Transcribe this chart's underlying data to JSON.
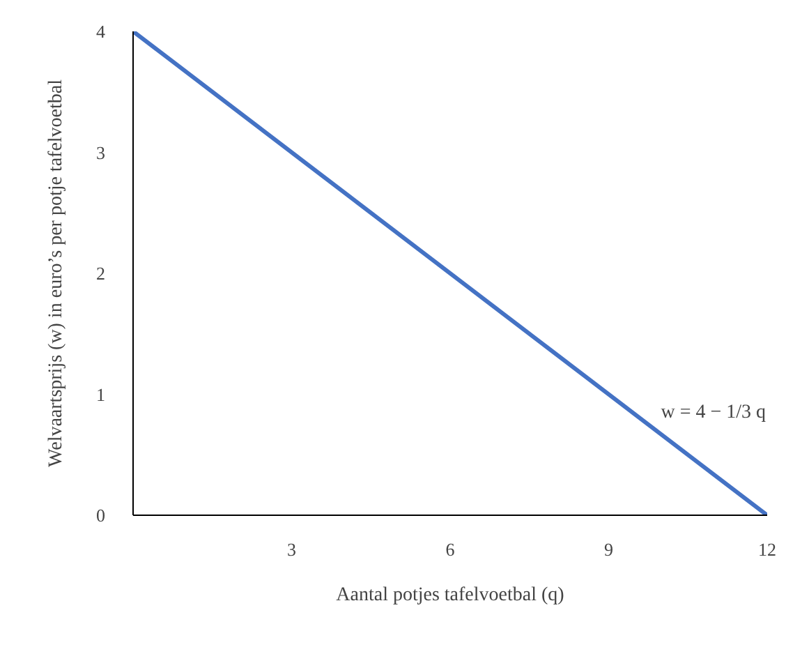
{
  "chart_data": {
    "type": "line",
    "xlabel": "Aantal potjes tafelvoetbal (q)",
    "ylabel": "Welvaartsprijs (w) in euro’s per potje tafelvoetbal",
    "x": [
      0,
      12
    ],
    "series": [
      {
        "color": "#4472c4",
        "values": [
          4,
          0
        ]
      }
    ],
    "xlim": [
      0,
      12
    ],
    "ylim": [
      0,
      4
    ],
    "xticks": [
      3,
      6,
      9,
      12
    ],
    "yticks": [
      0,
      1,
      2,
      3,
      4
    ],
    "annotations": [
      "w = 4 − 1/3 q"
    ]
  }
}
